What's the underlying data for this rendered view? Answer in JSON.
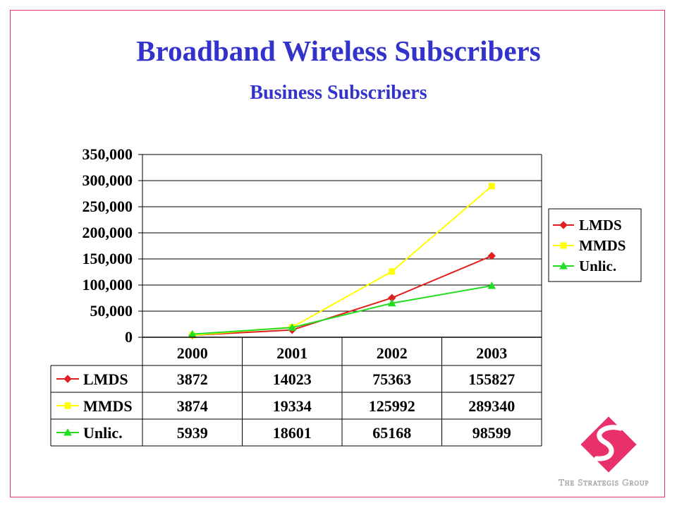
{
  "slide": {
    "title": "Broadband Wireless Subscribers",
    "subtitle": "Business Subscribers",
    "logo_text": "The Strategis Group"
  },
  "colors": {
    "title": "#3333cc",
    "frame": "#d9376e",
    "logo": "#e8306a",
    "LMDS": "#e02020",
    "MMDS": "#ffff00",
    "Unlic.": "#22dd22"
  },
  "chart_data": {
    "type": "line",
    "title": "",
    "xlabel": "",
    "ylabel": "",
    "categories": [
      "2000",
      "2001",
      "2002",
      "2003"
    ],
    "ylim": [
      0,
      350000
    ],
    "yticks": [
      "0",
      "50,000",
      "100,000",
      "150,000",
      "200,000",
      "250,000",
      "300,000",
      "350,000"
    ],
    "grid": true,
    "legend_position": "right",
    "series": [
      {
        "name": "LMDS",
        "marker": "diamond",
        "values": [
          3872,
          14023,
          75363,
          155827
        ]
      },
      {
        "name": "MMDS",
        "marker": "square",
        "values": [
          3874,
          19334,
          125992,
          289340
        ]
      },
      {
        "name": "Unlic.",
        "marker": "triangle",
        "values": [
          5939,
          18601,
          65168,
          98599
        ]
      }
    ],
    "table": {
      "rows": [
        {
          "label": "LMDS",
          "cells": [
            "3872",
            "14023",
            "75363",
            "155827"
          ]
        },
        {
          "label": "MMDS",
          "cells": [
            "3874",
            "19334",
            "125992",
            "289340"
          ]
        },
        {
          "label": "Unlic.",
          "cells": [
            "5939",
            "18601",
            "65168",
            "98599"
          ]
        }
      ]
    }
  }
}
